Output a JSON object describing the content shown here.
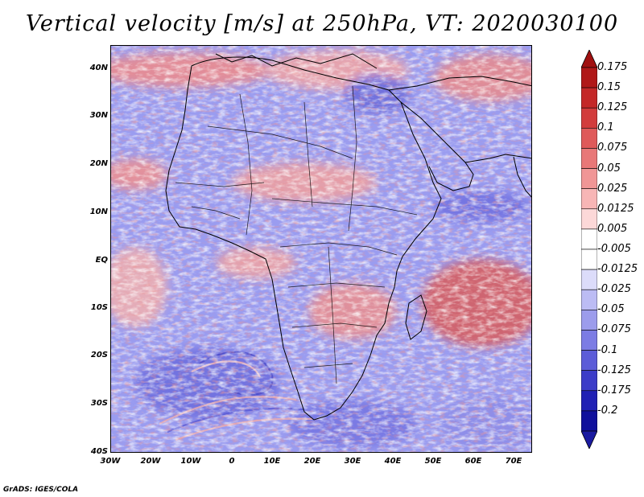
{
  "title": "Vertical velocity [m/s] at 250hPa, VT: 2020030100",
  "footer": "GrADS: IGES/COLA",
  "map": {
    "lat_labels": [
      "40N",
      "30N",
      "20N",
      "10N",
      "EQ",
      "10S",
      "20S",
      "30S",
      "40S"
    ],
    "lon_labels": [
      "30W",
      "20W",
      "10W",
      "0",
      "10E",
      "20E",
      "30E",
      "40E",
      "50E",
      "60E",
      "70E"
    ]
  },
  "colorbar": {
    "labels": [
      "0.175",
      "0.15",
      "0.125",
      "0.1",
      "0.075",
      "0.05",
      "0.025",
      "0.0125",
      "0.005",
      "-0.005",
      "-0.0125",
      "-0.025",
      "-0.05",
      "-0.075",
      "-0.1",
      "-0.125",
      "-0.175",
      "-0.2"
    ],
    "colors": [
      "#b01818",
      "#c42828",
      "#d23c3c",
      "#df5a5a",
      "#e87878",
      "#f09696",
      "#f7b6b6",
      "#fcd8d8",
      "#ffffff",
      "#ffffff",
      "#dcdcfa",
      "#bcbcf4",
      "#9c9cec",
      "#7c7ce4",
      "#5c5cd8",
      "#3c3cc8",
      "#2020b4",
      "#10109c"
    ],
    "top_arrow_color": "#a01010",
    "bottom_arrow_color": "#1a1aa0"
  }
}
